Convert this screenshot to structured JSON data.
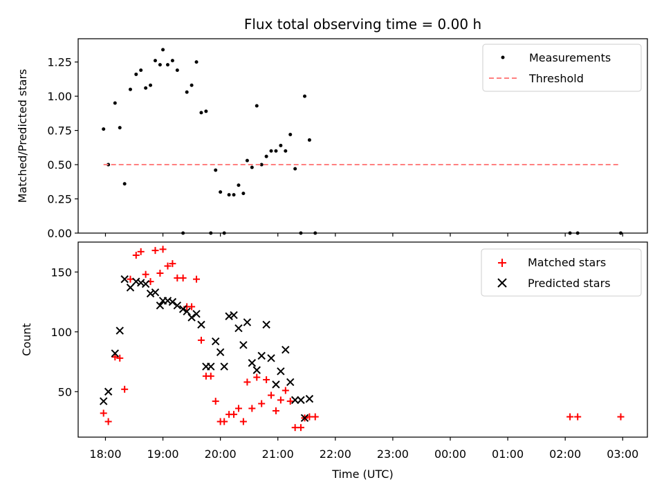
{
  "chart_data": [
    {
      "type": "scatter",
      "title": "Flux total observing time = 0.00 h",
      "ylabel": "Matched/Predicted stars",
      "xlabel": "",
      "ylim": [
        0,
        1.42
      ],
      "yticks": [
        "0.00",
        "0.25",
        "0.50",
        "0.75",
        "1.00",
        "1.25"
      ],
      "grid": false,
      "legend_position": "top-right",
      "series": [
        {
          "name": "Measurements",
          "marker": "dot",
          "color": "#000000",
          "points": [
            [
              "17:58",
              0.76
            ],
            [
              "18:03",
              0.5
            ],
            [
              "18:10",
              0.95
            ],
            [
              "18:15",
              0.77
            ],
            [
              "18:20",
              0.36
            ],
            [
              "18:26",
              1.05
            ],
            [
              "18:32",
              1.16
            ],
            [
              "18:37",
              1.19
            ],
            [
              "18:42",
              1.06
            ],
            [
              "18:47",
              1.08
            ],
            [
              "18:52",
              1.26
            ],
            [
              "18:57",
              1.23
            ],
            [
              "19:00",
              1.34
            ],
            [
              "19:05",
              1.23
            ],
            [
              "19:10",
              1.26
            ],
            [
              "19:15",
              1.19
            ],
            [
              "19:21",
              0.0
            ],
            [
              "19:25",
              1.03
            ],
            [
              "19:30",
              1.08
            ],
            [
              "19:35",
              1.25
            ],
            [
              "19:40",
              0.88
            ],
            [
              "19:45",
              0.89
            ],
            [
              "19:50",
              0.0
            ],
            [
              "19:55",
              0.46
            ],
            [
              "20:00",
              0.3
            ],
            [
              "20:04",
              0.0
            ],
            [
              "20:09",
              0.28
            ],
            [
              "20:14",
              0.28
            ],
            [
              "20:19",
              0.35
            ],
            [
              "20:24",
              0.29
            ],
            [
              "20:28",
              0.53
            ],
            [
              "20:33",
              0.48
            ],
            [
              "20:38",
              0.93
            ],
            [
              "20:43",
              0.5
            ],
            [
              "20:48",
              0.56
            ],
            [
              "20:53",
              0.6
            ],
            [
              "20:58",
              0.6
            ],
            [
              "21:03",
              0.64
            ],
            [
              "21:08",
              0.6
            ],
            [
              "21:13",
              0.72
            ],
            [
              "21:18",
              0.47
            ],
            [
              "21:24",
              0.0
            ],
            [
              "21:28",
              1.0
            ],
            [
              "21:33",
              0.68
            ],
            [
              "21:39",
              0.0
            ],
            [
              "26:05",
              0.0
            ],
            [
              "26:13",
              0.0
            ],
            [
              "26:58",
              0.0
            ]
          ]
        },
        {
          "name": "Threshold",
          "style": "dashed-line",
          "color": "#ff7f7f",
          "points": [
            [
              "17:58",
              0.5
            ],
            [
              "26:58",
              0.5
            ]
          ]
        }
      ]
    },
    {
      "type": "scatter",
      "title": "",
      "ylabel": "Count",
      "xlabel": "Time (UTC)",
      "ylim": [
        12,
        175
      ],
      "yticks": [
        "50",
        "100",
        "150"
      ],
      "xticks": [
        "18:00",
        "19:00",
        "20:00",
        "21:00",
        "22:00",
        "23:00",
        "00:00",
        "01:00",
        "02:00",
        "03:00"
      ],
      "grid": false,
      "legend_position": "top-right",
      "series": [
        {
          "name": "Matched stars",
          "marker": "plus",
          "color": "#ff0000",
          "points": [
            [
              "17:58",
              32
            ],
            [
              "18:03",
              25
            ],
            [
              "18:10",
              79
            ],
            [
              "18:15",
              78
            ],
            [
              "18:20",
              52
            ],
            [
              "18:26",
              144
            ],
            [
              "18:32",
              164
            ],
            [
              "18:37",
              167
            ],
            [
              "18:42",
              148
            ],
            [
              "18:47",
              142
            ],
            [
              "18:52",
              168
            ],
            [
              "18:57",
              149
            ],
            [
              "19:00",
              169
            ],
            [
              "19:05",
              155
            ],
            [
              "19:10",
              157
            ],
            [
              "19:15",
              145
            ],
            [
              "19:21",
              145
            ],
            [
              "19:25",
              121
            ],
            [
              "19:30",
              121
            ],
            [
              "19:35",
              144
            ],
            [
              "19:40",
              93
            ],
            [
              "19:45",
              63
            ],
            [
              "19:50",
              63
            ],
            [
              "19:55",
              42
            ],
            [
              "20:00",
              25
            ],
            [
              "20:04",
              25
            ],
            [
              "20:09",
              31
            ],
            [
              "20:14",
              31
            ],
            [
              "20:19",
              36
            ],
            [
              "20:24",
              25
            ],
            [
              "20:28",
              58
            ],
            [
              "20:33",
              36
            ],
            [
              "20:38",
              62
            ],
            [
              "20:43",
              40
            ],
            [
              "20:48",
              60
            ],
            [
              "20:53",
              47
            ],
            [
              "20:58",
              34
            ],
            [
              "21:03",
              43
            ],
            [
              "21:08",
              51
            ],
            [
              "21:13",
              42
            ],
            [
              "21:18",
              20
            ],
            [
              "21:24",
              20
            ],
            [
              "21:28",
              28
            ],
            [
              "21:33",
              29
            ],
            [
              "21:39",
              29
            ],
            [
              "26:05",
              29
            ],
            [
              "26:13",
              29
            ],
            [
              "26:58",
              29
            ]
          ]
        },
        {
          "name": "Predicted stars",
          "marker": "x",
          "color": "#000000",
          "points": [
            [
              "17:58",
              42
            ],
            [
              "18:03",
              50
            ],
            [
              "18:10",
              82
            ],
            [
              "18:15",
              101
            ],
            [
              "18:20",
              144
            ],
            [
              "18:26",
              137
            ],
            [
              "18:32",
              142
            ],
            [
              "18:37",
              141
            ],
            [
              "18:42",
              140
            ],
            [
              "18:47",
              132
            ],
            [
              "18:52",
              133
            ],
            [
              "18:57",
              122
            ],
            [
              "19:00",
              126
            ],
            [
              "19:05",
              126
            ],
            [
              "19:10",
              125
            ],
            [
              "19:15",
              122
            ],
            [
              "19:21",
              119
            ],
            [
              "19:25",
              117
            ],
            [
              "19:30",
              112
            ],
            [
              "19:35",
              115
            ],
            [
              "19:40",
              106
            ],
            [
              "19:45",
              71
            ],
            [
              "19:50",
              71
            ],
            [
              "19:55",
              92
            ],
            [
              "20:00",
              83
            ],
            [
              "20:04",
              71
            ],
            [
              "20:09",
              113
            ],
            [
              "20:14",
              114
            ],
            [
              "20:19",
              103
            ],
            [
              "20:24",
              89
            ],
            [
              "20:28",
              108
            ],
            [
              "20:33",
              74
            ],
            [
              "20:38",
              68
            ],
            [
              "20:43",
              80
            ],
            [
              "20:48",
              106
            ],
            [
              "20:53",
              78
            ],
            [
              "20:58",
              56
            ],
            [
              "21:03",
              67
            ],
            [
              "21:08",
              85
            ],
            [
              "21:13",
              58
            ],
            [
              "21:18",
              43
            ],
            [
              "21:24",
              43
            ],
            [
              "21:28",
              28
            ],
            [
              "21:33",
              44
            ]
          ]
        }
      ]
    }
  ]
}
